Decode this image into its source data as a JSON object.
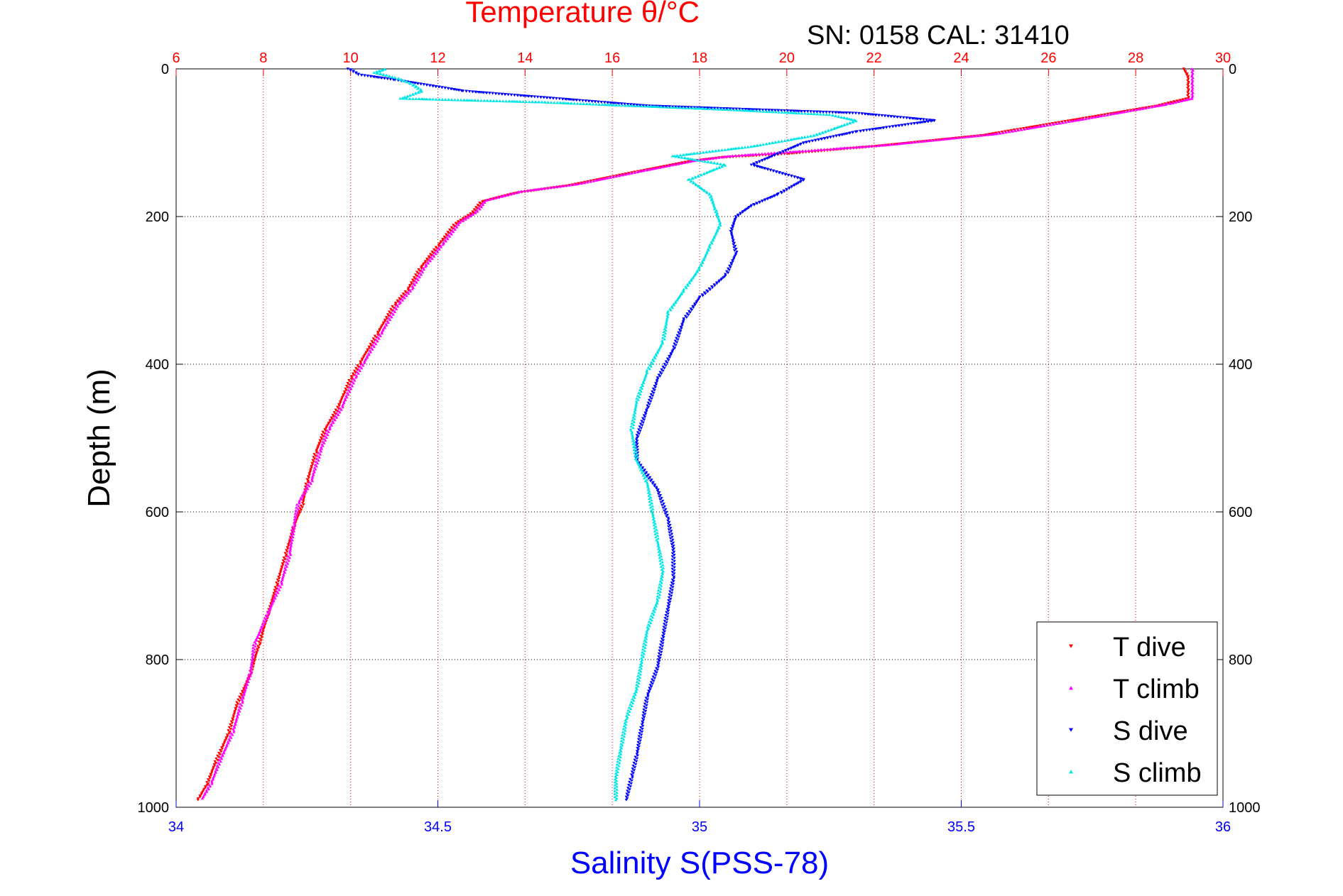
{
  "chart_data": {
    "type": "scatter",
    "title": "Temperature θ/°C",
    "subtitle": "SN: 0158  CAL: 31410",
    "xlabel": "Salinity S(PSS-78)",
    "ylabel": "Depth (m)",
    "x_bottom": {
      "label": "Salinity S(PSS-78)",
      "lim": [
        34,
        36
      ],
      "ticks": [
        34,
        34.5,
        35,
        35.5,
        36
      ],
      "color": "#0000ff"
    },
    "x_top": {
      "label": "Temperature θ/°C",
      "lim": [
        6,
        30
      ],
      "ticks": [
        6,
        8,
        10,
        12,
        14,
        16,
        18,
        20,
        22,
        24,
        26,
        28,
        30
      ],
      "color": "#ff0000"
    },
    "y": {
      "label": "Depth (m)",
      "lim": [
        0,
        1000
      ],
      "reversed": true,
      "ticks": [
        0,
        200,
        400,
        600,
        800,
        1000
      ]
    },
    "grid": true,
    "legend_position": "bottom-right",
    "series": [
      {
        "name": "T dive",
        "axis": "temperature",
        "color": "#ff0000",
        "marker": "triangle-down",
        "points": [
          [
            29.1,
            0
          ],
          [
            29.2,
            10
          ],
          [
            29.2,
            20
          ],
          [
            29.2,
            30
          ],
          [
            29.2,
            40
          ],
          [
            28.5,
            50
          ],
          [
            26.5,
            70
          ],
          [
            24.5,
            90
          ],
          [
            22.0,
            105
          ],
          [
            20.0,
            115
          ],
          [
            18.5,
            120
          ],
          [
            17.8,
            125
          ],
          [
            16.5,
            140
          ],
          [
            15.0,
            158
          ],
          [
            13.8,
            168
          ],
          [
            13.0,
            180
          ],
          [
            12.8,
            195
          ],
          [
            12.4,
            210
          ],
          [
            12.0,
            240
          ],
          [
            11.6,
            270
          ],
          [
            11.3,
            300
          ],
          [
            11.0,
            320
          ],
          [
            10.6,
            360
          ],
          [
            10.2,
            400
          ],
          [
            10.0,
            420
          ],
          [
            9.7,
            460
          ],
          [
            9.4,
            490
          ],
          [
            9.2,
            520
          ],
          [
            9.0,
            560
          ],
          [
            8.9,
            590
          ],
          [
            8.7,
            620
          ],
          [
            8.5,
            660
          ],
          [
            8.3,
            700
          ],
          [
            8.1,
            740
          ],
          [
            7.9,
            780
          ],
          [
            7.7,
            820
          ],
          [
            7.4,
            860
          ],
          [
            7.2,
            900
          ],
          [
            6.9,
            940
          ],
          [
            6.7,
            970
          ],
          [
            6.5,
            990
          ]
        ]
      },
      {
        "name": "T climb",
        "axis": "temperature",
        "color": "#ff00ff",
        "marker": "triangle-up",
        "points": [
          [
            29.3,
            0
          ],
          [
            29.3,
            10
          ],
          [
            29.3,
            20
          ],
          [
            29.3,
            30
          ],
          [
            29.3,
            40
          ],
          [
            28.7,
            48
          ],
          [
            26.8,
            68
          ],
          [
            24.8,
            88
          ],
          [
            22.3,
            103
          ],
          [
            20.2,
            112
          ],
          [
            18.7,
            118
          ],
          [
            17.9,
            124
          ],
          [
            16.7,
            138
          ],
          [
            15.2,
            156
          ],
          [
            13.9,
            166
          ],
          [
            13.1,
            178
          ],
          [
            12.9,
            193
          ],
          [
            12.5,
            208
          ],
          [
            12.1,
            238
          ],
          [
            11.7,
            268
          ],
          [
            11.4,
            298
          ],
          [
            11.1,
            318
          ],
          [
            10.7,
            358
          ],
          [
            10.3,
            398
          ],
          [
            10.1,
            418
          ],
          [
            9.8,
            458
          ],
          [
            9.5,
            488
          ],
          [
            9.3,
            518
          ],
          [
            9.1,
            558
          ],
          [
            8.8,
            588
          ],
          [
            8.7,
            618
          ],
          [
            8.6,
            658
          ],
          [
            8.4,
            698
          ],
          [
            8.1,
            738
          ],
          [
            7.8,
            778
          ],
          [
            7.7,
            818
          ],
          [
            7.5,
            858
          ],
          [
            7.3,
            898
          ],
          [
            7.0,
            938
          ],
          [
            6.8,
            968
          ],
          [
            6.6,
            988
          ]
        ]
      },
      {
        "name": "S dive",
        "axis": "salinity",
        "color": "#0000ff",
        "marker": "triangle-down",
        "points": [
          [
            34.33,
            0
          ],
          [
            34.35,
            8
          ],
          [
            34.42,
            15
          ],
          [
            34.55,
            30
          ],
          [
            34.9,
            50
          ],
          [
            35.3,
            60
          ],
          [
            35.45,
            70
          ],
          [
            35.3,
            85
          ],
          [
            35.2,
            100
          ],
          [
            35.15,
            115
          ],
          [
            35.1,
            130
          ],
          [
            35.2,
            150
          ],
          [
            35.15,
            170
          ],
          [
            35.1,
            185
          ],
          [
            35.07,
            200
          ],
          [
            35.06,
            220
          ],
          [
            35.07,
            250
          ],
          [
            35.05,
            280
          ],
          [
            35.0,
            310
          ],
          [
            34.97,
            340
          ],
          [
            34.95,
            380
          ],
          [
            34.92,
            420
          ],
          [
            34.9,
            460
          ],
          [
            34.88,
            500
          ],
          [
            34.88,
            530
          ],
          [
            34.92,
            570
          ],
          [
            34.94,
            610
          ],
          [
            34.95,
            650
          ],
          [
            34.95,
            690
          ],
          [
            34.94,
            730
          ],
          [
            34.93,
            770
          ],
          [
            34.92,
            810
          ],
          [
            34.9,
            850
          ],
          [
            34.89,
            890
          ],
          [
            34.88,
            930
          ],
          [
            34.87,
            960
          ],
          [
            34.86,
            990
          ]
        ]
      },
      {
        "name": "S climb",
        "axis": "salinity",
        "color": "#00e6e6",
        "marker": "triangle-up",
        "points": [
          [
            34.4,
            0
          ],
          [
            34.38,
            5
          ],
          [
            34.42,
            12
          ],
          [
            34.45,
            20
          ],
          [
            34.47,
            30
          ],
          [
            34.43,
            40
          ],
          [
            34.7,
            45
          ],
          [
            35.05,
            55
          ],
          [
            35.25,
            62
          ],
          [
            35.3,
            70
          ],
          [
            35.22,
            90
          ],
          [
            35.1,
            105
          ],
          [
            34.95,
            118
          ],
          [
            35.05,
            130
          ],
          [
            34.98,
            150
          ],
          [
            35.02,
            170
          ],
          [
            35.03,
            190
          ],
          [
            35.04,
            210
          ],
          [
            35.02,
            240
          ],
          [
            35.0,
            270
          ],
          [
            34.97,
            300
          ],
          [
            34.94,
            330
          ],
          [
            34.93,
            370
          ],
          [
            34.9,
            410
          ],
          [
            34.88,
            450
          ],
          [
            34.87,
            490
          ],
          [
            34.88,
            530
          ],
          [
            34.9,
            560
          ],
          [
            34.91,
            600
          ],
          [
            34.92,
            640
          ],
          [
            34.93,
            680
          ],
          [
            34.92,
            720
          ],
          [
            34.9,
            760
          ],
          [
            34.89,
            800
          ],
          [
            34.88,
            840
          ],
          [
            34.86,
            880
          ],
          [
            34.85,
            920
          ],
          [
            34.84,
            960
          ],
          [
            34.84,
            990
          ]
        ]
      }
    ],
    "legend": [
      {
        "label": "T dive",
        "color": "#ff0000",
        "marker": "triangle-down"
      },
      {
        "label": "T climb",
        "color": "#ff00ff",
        "marker": "triangle-up"
      },
      {
        "label": "S dive",
        "color": "#0000ff",
        "marker": "triangle-down"
      },
      {
        "label": "S climb",
        "color": "#00e6e6",
        "marker": "triangle-up"
      }
    ]
  }
}
